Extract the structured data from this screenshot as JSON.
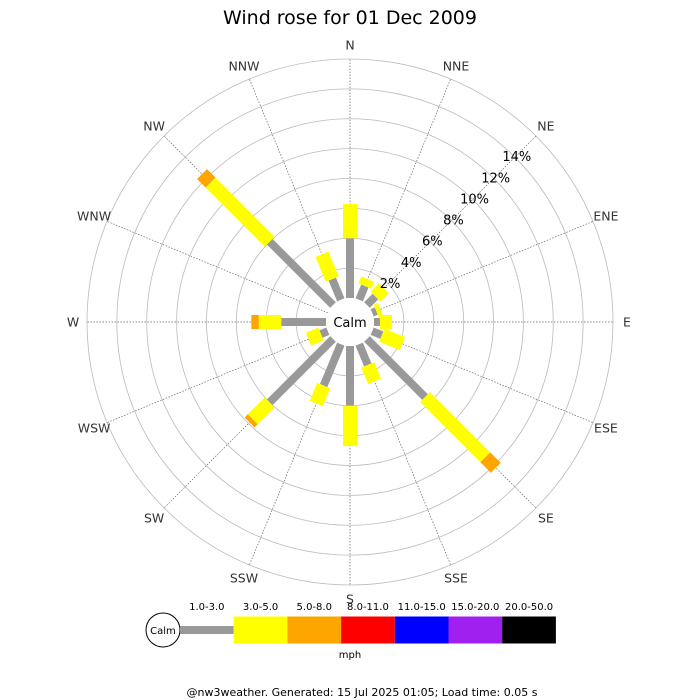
{
  "chart_data": {
    "type": "wind-rose",
    "title": "Wind rose for 01 Dec 2009",
    "directions": [
      "N",
      "NNE",
      "NE",
      "ENE",
      "E",
      "ESE",
      "SE",
      "SSE",
      "S",
      "SSW",
      "SW",
      "WSW",
      "W",
      "WNW",
      "NW",
      "NNW"
    ],
    "ring_labels": [
      "2%",
      "4%",
      "6%",
      "8%",
      "10%",
      "12%",
      "14%"
    ],
    "calm_label": "Calm",
    "speed_bins": [
      "1.0-3.0",
      "3.0-5.0",
      "5.0-8.0",
      "8.0-11.0",
      "11.0-15.0",
      "15.0-20.0",
      "20.0-50.0"
    ],
    "bin_colors": [
      "#999999",
      "#ffff00",
      "#ffa500",
      "#ff0000",
      "#0000ff",
      "#a020f0",
      "#000000"
    ],
    "units": "mph",
    "rmax_percent": 16,
    "series": [
      {
        "name": "1.0-3.0",
        "values": [
          4.0,
          1.0,
          0.8,
          0.3,
          0.4,
          0.7,
          5.5,
          1.5,
          4.0,
          3.0,
          6.0,
          0.5,
          3.0,
          0,
          6.0,
          1.5
        ]
      },
      {
        "name": "3.0-5.0",
        "values": [
          2.3,
          0.5,
          0.8,
          0.3,
          0.8,
          1.5,
          5.7,
          1.2,
          2.7,
          1.3,
          1.6,
          0.9,
          1.5,
          0,
          5.6,
          1.8
        ]
      },
      {
        "name": "5.0-8.0",
        "values": [
          0,
          0,
          0,
          0,
          0,
          0,
          1.0,
          0,
          0,
          0,
          0.3,
          0,
          0.5,
          0,
          0.8,
          0
        ]
      },
      {
        "name": "8.0-11.0",
        "values": [
          0,
          0,
          0,
          0,
          0,
          0,
          0,
          0,
          0,
          0,
          0,
          0,
          0,
          0,
          0,
          0
        ]
      },
      {
        "name": "11.0-15.0",
        "values": [
          0,
          0,
          0,
          0,
          0,
          0,
          0,
          0,
          0,
          0,
          0,
          0,
          0,
          0,
          0,
          0
        ]
      },
      {
        "name": "15.0-20.0",
        "values": [
          0,
          0,
          0,
          0,
          0,
          0,
          0,
          0,
          0,
          0,
          0,
          0,
          0,
          0,
          0,
          0
        ]
      },
      {
        "name": "20.0-50.0",
        "values": [
          0,
          0,
          0,
          0,
          0,
          0,
          0,
          0,
          0,
          0,
          0,
          0,
          0,
          0,
          0,
          0
        ]
      }
    ]
  },
  "footer": "@nw3weather. Generated: 15 Jul 2025 01:05; Load time: 0.05 s"
}
